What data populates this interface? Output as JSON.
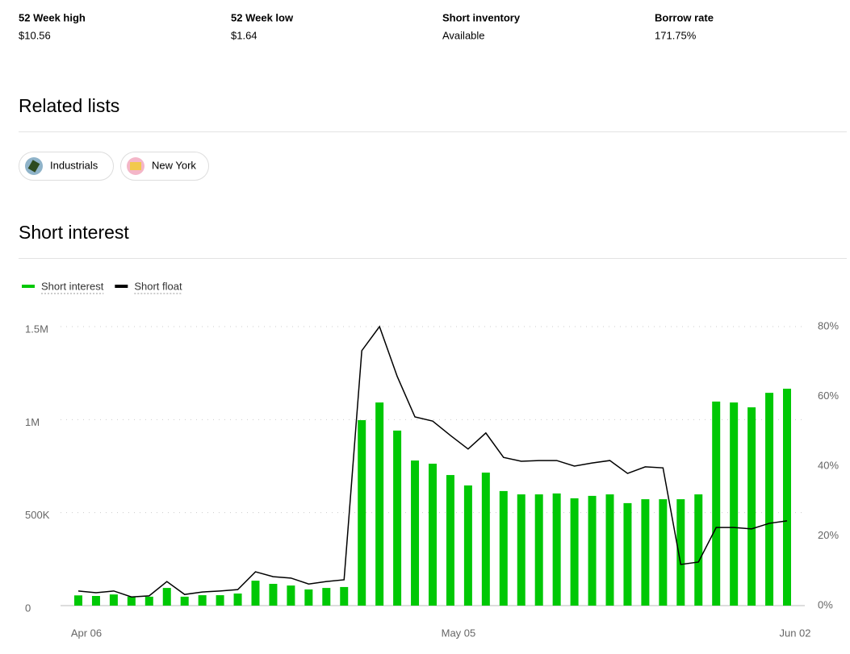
{
  "stats": [
    {
      "label": "52 Week high",
      "value": "$10.56"
    },
    {
      "label": "52 Week low",
      "value": "$1.64"
    },
    {
      "label": "Short inventory",
      "value": "Available"
    },
    {
      "label": "Borrow rate",
      "value": "171.75%"
    }
  ],
  "related_lists": {
    "title": "Related lists",
    "items": [
      "Industrials",
      "New York"
    ]
  },
  "chart_data": {
    "type": "combo",
    "title": "Short interest",
    "categories": [
      "Apr 06",
      null,
      null,
      null,
      null,
      null,
      null,
      null,
      null,
      null,
      null,
      null,
      null,
      null,
      null,
      null,
      null,
      null,
      null,
      null,
      null,
      "May 05",
      null,
      null,
      null,
      null,
      null,
      null,
      null,
      null,
      null,
      null,
      null,
      null,
      null,
      null,
      null,
      null,
      null,
      null,
      "Jun 02"
    ],
    "series": [
      {
        "name": "Short interest",
        "type": "bar",
        "color": "#00c805",
        "axis": "y",
        "values": [
          55000,
          52000,
          60000,
          48000,
          48000,
          95000,
          48000,
          56000,
          56000,
          65000,
          134000,
          117000,
          108000,
          87000,
          95000,
          100000,
          997000,
          1092000,
          941000,
          780000,
          763000,
          702000,
          646000,
          715000,
          616000,
          598000,
          598000,
          603000,
          577000,
          590000,
          598000,
          551000,
          572000,
          572000,
          572000,
          598000,
          1097000,
          1092000,
          1066000,
          1144000,
          1166000
        ]
      },
      {
        "name": "Short float",
        "type": "line",
        "color": "#000000",
        "axis": "y2",
        "values": [
          4.2,
          3.7,
          4.2,
          2.5,
          2.8,
          6.9,
          3.2,
          3.9,
          4.2,
          4.6,
          9.7,
          8.3,
          7.9,
          6.2,
          6.9,
          7.4,
          73.1,
          80,
          65.7,
          54.1,
          52.9,
          48.8,
          44.9,
          49.5,
          42.5,
          41.4,
          41.6,
          41.6,
          40.0,
          40.9,
          41.6,
          37.9,
          39.8,
          39.5,
          11.8,
          12.5,
          22.4,
          22.4,
          22.0,
          23.6,
          24.3
        ]
      }
    ],
    "ylim": [
      0,
      1500000
    ],
    "yticks": [
      0,
      {
        "value": 500000,
        "label": "500K"
      },
      {
        "value": 1000000,
        "label": "1M"
      },
      {
        "value": 1500000,
        "label": "1.5M"
      }
    ],
    "y2lim": [
      0,
      80
    ],
    "y2ticks": [
      {
        "value": 0,
        "label": "0%"
      },
      {
        "value": 20,
        "label": "20%"
      },
      {
        "value": 40,
        "label": "40%"
      },
      {
        "value": 60,
        "label": "60%"
      },
      {
        "value": 80,
        "label": "80%"
      }
    ],
    "grid": true,
    "legend": "top-left"
  }
}
